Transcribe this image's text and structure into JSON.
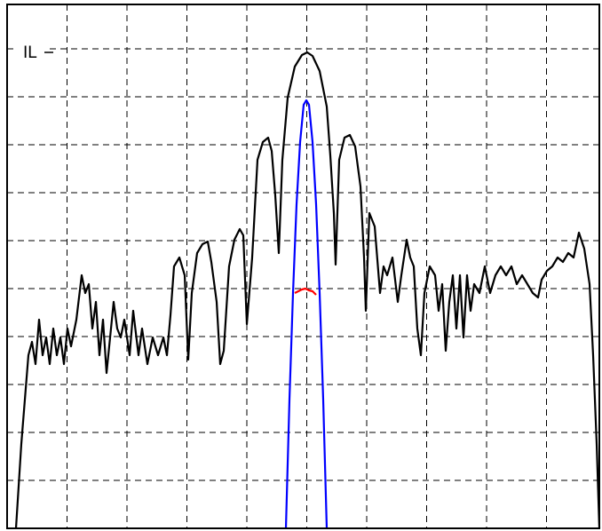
{
  "chart_data": {
    "type": "line",
    "annotation": "IL",
    "xlim": [
      0,
      667
    ],
    "ylim": [
      0,
      590
    ],
    "xticks": [
      67.5,
      135,
      202.5,
      270,
      337.5,
      405,
      472.5,
      540,
      607.5
    ],
    "yticks": [
      54,
      108,
      162,
      216,
      270,
      324,
      378,
      432,
      486,
      540
    ],
    "grid": true,
    "series": [
      {
        "color": "#000000",
        "x": [
          10,
          16,
          20,
          24,
          28,
          32,
          36,
          40,
          44,
          48,
          52,
          56,
          60,
          64,
          68,
          72,
          78,
          84,
          88,
          92,
          96,
          100,
          104,
          108,
          112,
          116,
          120,
          124,
          128,
          132,
          138,
          142,
          148,
          152,
          158,
          164,
          170,
          176,
          180,
          184,
          188,
          194,
          200,
          204,
          208,
          214,
          220,
          226,
          230,
          236,
          240,
          244,
          250,
          256,
          262,
          266,
          270,
          276,
          282,
          288,
          294,
          298,
          302,
          306,
          310,
          316,
          324,
          332,
          338,
          344,
          352,
          360,
          364,
          368,
          370,
          374,
          380,
          386,
          392,
          398,
          402,
          404,
          408,
          414,
          420,
          424,
          428,
          434,
          440,
          444,
          450,
          454,
          458,
          462,
          466,
          470,
          476,
          482,
          486,
          490,
          494,
          498,
          502,
          506,
          510,
          514,
          518,
          522,
          526,
          532,
          538,
          544,
          550,
          556,
          562,
          568,
          574,
          580,
          586,
          592,
          598,
          602,
          608,
          614,
          620,
          626,
          632,
          638,
          644,
          650,
          656,
          660,
          664,
          667
        ],
        "values": [
          0,
          95,
          145,
          195,
          210,
          185,
          235,
          195,
          215,
          185,
          225,
          195,
          215,
          185,
          225,
          205,
          235,
          285,
          265,
          275,
          225,
          255,
          195,
          235,
          175,
          215,
          255,
          225,
          215,
          235,
          195,
          245,
          195,
          225,
          185,
          215,
          195,
          215,
          195,
          240,
          295,
          305,
          285,
          190,
          265,
          310,
          320,
          323,
          300,
          255,
          185,
          200,
          295,
          325,
          337,
          330,
          230,
          305,
          415,
          435,
          440,
          425,
          375,
          310,
          415,
          485,
          520,
          533,
          536,
          532,
          515,
          475,
          420,
          355,
          297,
          415,
          440,
          443,
          430,
          385,
          305,
          245,
          355,
          340,
          265,
          295,
          285,
          305,
          255,
          285,
          325,
          305,
          295,
          225,
          195,
          265,
          295,
          285,
          245,
          275,
          200,
          255,
          285,
          225,
          285,
          215,
          285,
          245,
          275,
          265,
          295,
          265,
          285,
          295,
          285,
          295,
          275,
          285,
          275,
          265,
          260,
          280,
          290,
          295,
          305,
          300,
          310,
          305,
          333,
          315,
          275,
          195,
          95,
          0
        ]
      },
      {
        "color": "#0000ff",
        "x": [
          314,
          318,
          322,
          326,
          330,
          334,
          337,
          340,
          344,
          348,
          352,
          356,
          360
        ],
        "values": [
          0,
          145,
          265,
          365,
          435,
          477,
          482,
          477,
          435,
          365,
          265,
          145,
          0
        ]
      },
      {
        "color": "#ff0000",
        "x": [
          324,
          328,
          332,
          336,
          340,
          344,
          348
        ],
        "values": [
          265,
          267,
          269,
          270,
          268,
          267,
          263
        ]
      }
    ]
  }
}
